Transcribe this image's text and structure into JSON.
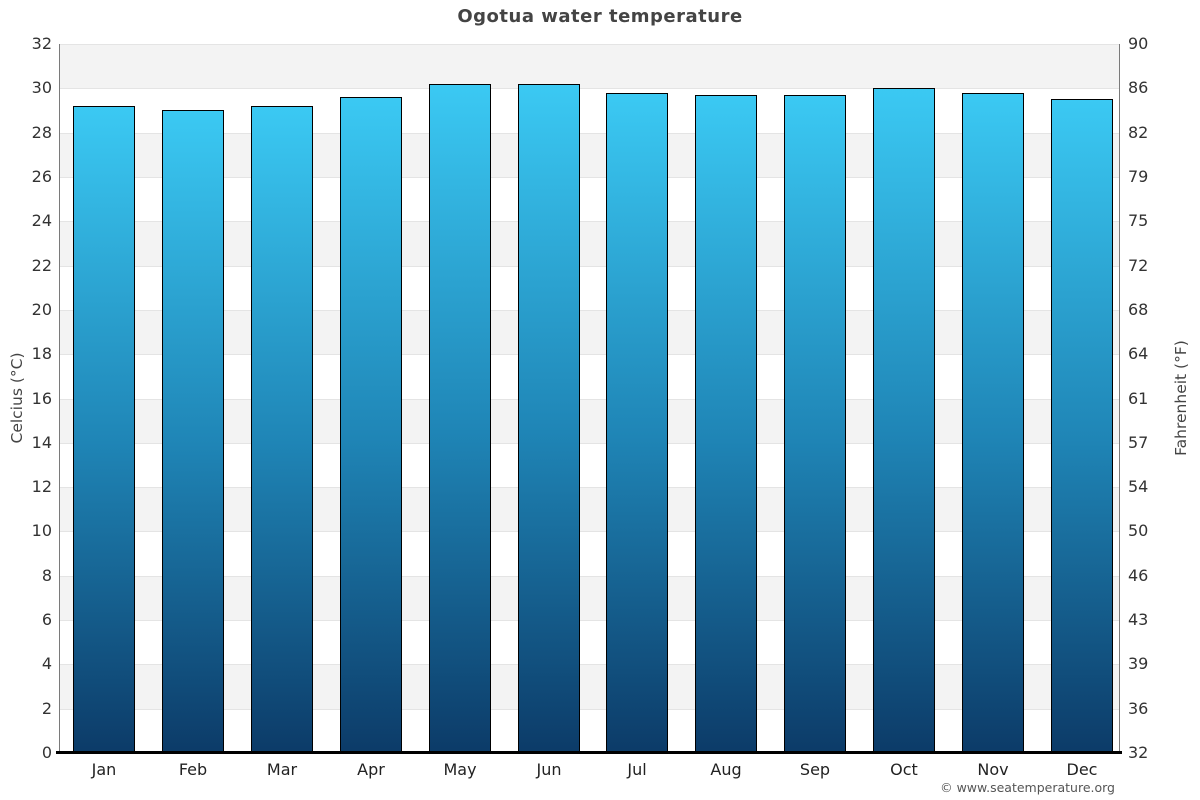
{
  "page": {
    "title": "Ogotua water temperature",
    "footer": "© www.seatemperature.org"
  },
  "chart_data": {
    "type": "bar",
    "title": "Ogotua water temperature",
    "categories": [
      "Jan",
      "Feb",
      "Mar",
      "Apr",
      "May",
      "Jun",
      "Jul",
      "Aug",
      "Sep",
      "Oct",
      "Nov",
      "Dec"
    ],
    "values": [
      29.2,
      29.0,
      29.2,
      29.6,
      30.2,
      30.2,
      29.8,
      29.7,
      29.7,
      30.0,
      29.8,
      29.5
    ],
    "unit": "°C",
    "ylabel_left": "Celcius (°C)",
    "ylabel_right": "Fahrenheit (°F)",
    "ylim": [
      0,
      32
    ],
    "ytick_step": 2,
    "yticks_left": [
      0,
      2,
      4,
      6,
      8,
      10,
      12,
      14,
      16,
      18,
      20,
      22,
      24,
      26,
      28,
      30,
      32
    ],
    "yticks_right_labels": [
      "32",
      "36",
      "39",
      "43",
      "46",
      "50",
      "54",
      "57",
      "61",
      "64",
      "68",
      "72",
      "75",
      "79",
      "82",
      "86",
      "90"
    ],
    "grid": "horizontal alternating bands every 2°C, gray band at top interval",
    "legend": null,
    "colors": {
      "bar_gradient_top": "#3bc9f3",
      "bar_gradient_mid": "#1f85b6",
      "bar_gradient_bottom": "#0c3b68",
      "bar_border": "#000000",
      "band_gray": "#f3f3f3",
      "band_white": "#ffffff",
      "gridline": "#e4e4e4",
      "axis_side": "#7a7a7a",
      "axis_bottom": "#000000",
      "tick_text": "#333333",
      "title_text": "#444444",
      "footer_text": "#555555"
    }
  }
}
